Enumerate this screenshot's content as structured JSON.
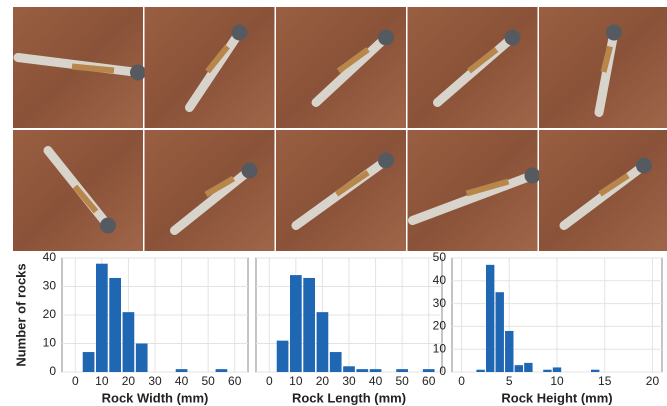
{
  "chart_data": [
    {
      "type": "histogram",
      "xlabel": "Rock Width (mm)",
      "ylabel": "Number of rocks",
      "bins": [
        2.5,
        7.5,
        12.5,
        17.5,
        22.5,
        27.5,
        32.5,
        37.5,
        42.5,
        47.5,
        52.5,
        57.5
      ],
      "values": [
        7,
        38,
        33,
        21,
        10,
        0,
        0,
        1,
        0,
        0,
        1
      ],
      "color": "#1f66b3",
      "xlim": [
        -5,
        65
      ],
      "xticks": [
        0,
        10,
        20,
        30,
        40,
        50,
        60
      ],
      "ylim": [
        0,
        40
      ],
      "yticks": [
        0,
        10,
        20,
        30,
        40
      ],
      "grid": true
    },
    {
      "type": "histogram",
      "xlabel": "Rock Length (mm)",
      "bins": [
        2.5,
        7.5,
        12.5,
        17.5,
        22.5,
        27.5,
        32.5,
        37.5,
        42.5,
        47.5,
        52.5,
        57.5,
        62.5
      ],
      "values": [
        11,
        34,
        33,
        21,
        7,
        2,
        1,
        1,
        0,
        1,
        0,
        1
      ],
      "color": "#1f66b3",
      "xlim": [
        -5,
        65
      ],
      "xticks": [
        0,
        10,
        20,
        30,
        40,
        50,
        60
      ],
      "ylim": [
        0,
        40
      ],
      "yticks": [
        0,
        10,
        20,
        30,
        40
      ],
      "grid": true
    },
    {
      "type": "histogram",
      "xlabel": "Rock Height (mm)",
      "bins": [
        1.5,
        2.5,
        3.5,
        4.5,
        5.5,
        6.5,
        7.5,
        8.5,
        9.5,
        10.5,
        11.5,
        12.5,
        13.5,
        14.5
      ],
      "values": [
        1,
        47,
        35,
        18,
        3,
        4,
        0,
        1,
        2,
        0,
        0,
        0,
        1
      ],
      "color": "#1f66b3",
      "xlim": [
        -1,
        21
      ],
      "xticks": [
        0,
        5,
        10,
        15,
        20
      ],
      "ylim": [
        0,
        50
      ],
      "yticks": [
        0,
        10,
        20,
        30,
        40,
        50
      ],
      "grid": true
    }
  ]
}
